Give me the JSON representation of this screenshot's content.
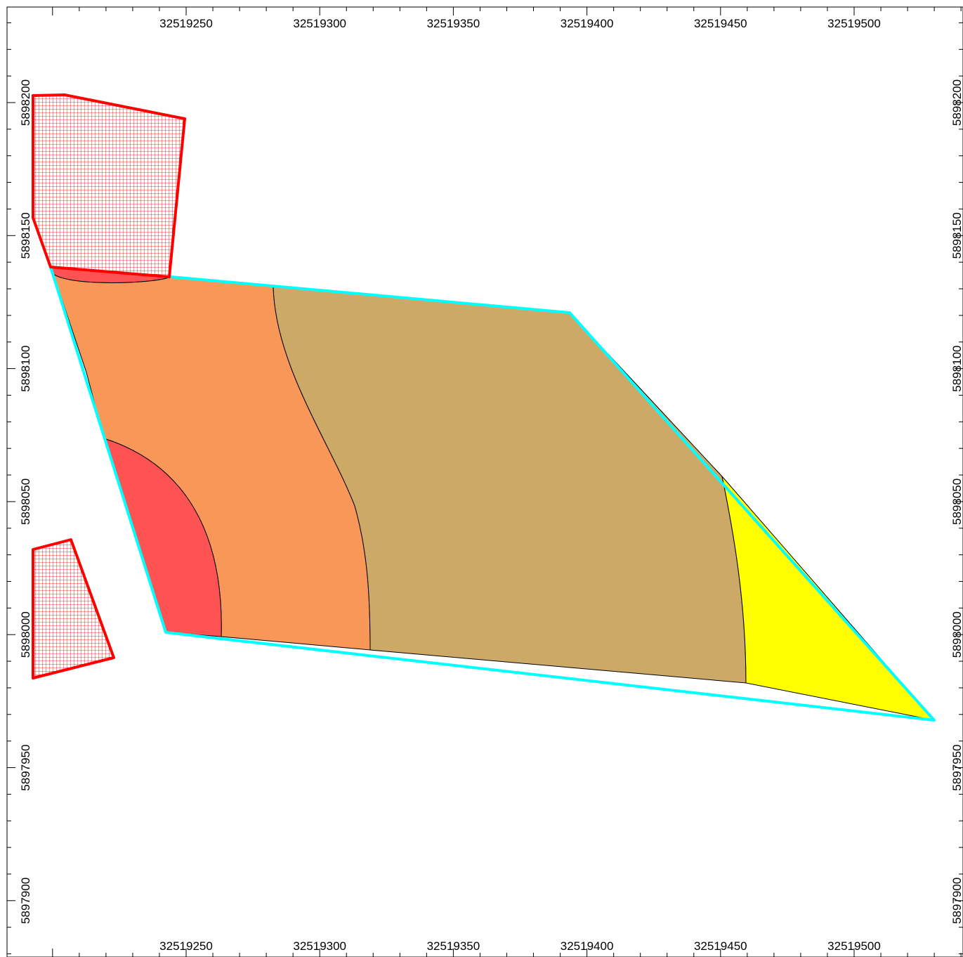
{
  "map": {
    "x_ticks": [
      "32519250",
      "32519300",
      "32519350",
      "32519400",
      "32519450",
      "32519500"
    ],
    "y_ticks": [
      "5898200",
      "5898150",
      "5898100",
      "5898050",
      "5898000",
      "5897950",
      "5897900"
    ],
    "colors": {
      "hatch": "#ff0000",
      "boundary": "#00ffff",
      "zone_red": "#ff5252",
      "zone_orange": "#f99758",
      "zone_tan": "#cca967",
      "zone_yellow": "#ffff00"
    },
    "zones": [
      {
        "id": "zone-red",
        "color_key": "zone_red"
      },
      {
        "id": "zone-orange",
        "color_key": "zone_orange"
      },
      {
        "id": "zone-tan",
        "color_key": "zone_tan"
      },
      {
        "id": "zone-yellow",
        "color_key": "zone_yellow"
      }
    ],
    "exclusion_areas": 2
  }
}
